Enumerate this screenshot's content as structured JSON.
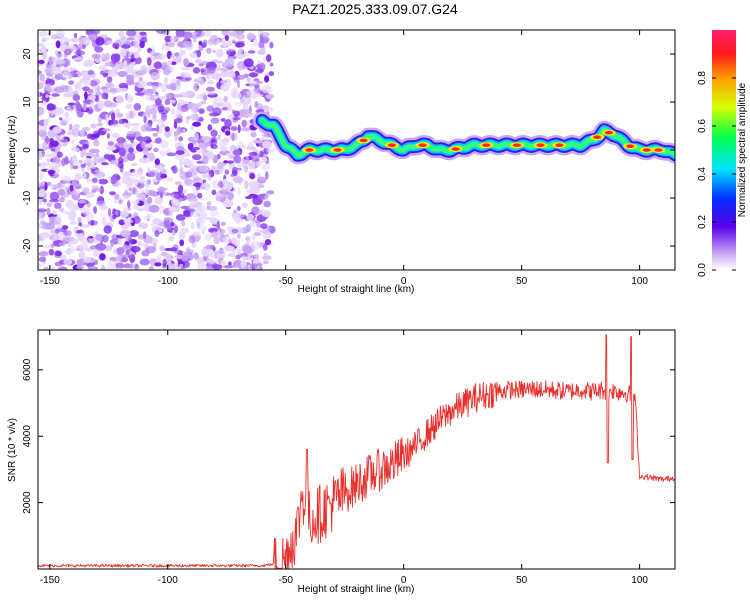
{
  "title": "PAZ1.2025.333.09.07.G24",
  "colors": {
    "snr_line": "#e8302c",
    "noise": "#8a2be2",
    "frame": "#000000"
  },
  "chart_data": [
    {
      "type": "heatmap",
      "name": "spectrogram",
      "xlabel": "Height of straight line (km)",
      "ylabel": "Frequency (Hz)",
      "xlim": [
        -155,
        115
      ],
      "ylim": [
        -25,
        25
      ],
      "xticks": [
        -150,
        -100,
        -50,
        0,
        50,
        100
      ],
      "yticks": [
        -20,
        -10,
        0,
        10,
        20
      ],
      "colorbar": {
        "label": "Normalized spectral amplitude",
        "range": [
          0,
          1
        ],
        "ticks": [
          "0.0",
          "0.2",
          "0.4",
          "0.6",
          "0.8"
        ],
        "tick_values": [
          0,
          0.2,
          0.4,
          0.6,
          0.8
        ]
      },
      "ridge": {
        "x": [
          -60,
          -55,
          -50,
          -45,
          -40,
          -35,
          -30,
          -25,
          -20,
          -17,
          -15,
          -10,
          -5,
          0,
          5,
          10,
          15,
          20,
          30,
          40,
          50,
          60,
          70,
          75,
          80,
          83,
          85,
          90,
          95,
          100,
          105,
          110,
          115
        ],
        "freq": [
          6,
          5,
          1,
          -1,
          0,
          0,
          0,
          0,
          1,
          2,
          3,
          2,
          1,
          0,
          1,
          1,
          0,
          0,
          1,
          1,
          1,
          1,
          1,
          1,
          2,
          3,
          4,
          3,
          1,
          0,
          0,
          0,
          -1
        ]
      }
    },
    {
      "type": "line",
      "name": "snr",
      "xlabel": "Height of straight line (km)",
      "ylabel": "SNR (10 * v/v)",
      "xlim": [
        -155,
        115
      ],
      "ylim": [
        0,
        7200
      ],
      "xticks": [
        -150,
        -100,
        -50,
        0,
        50,
        100
      ],
      "yticks": [
        2000,
        4000,
        6000
      ],
      "series": [
        {
          "name": "SNR",
          "x": [
            -155,
            -60,
            -55,
            -50,
            -48,
            -45,
            -43,
            -40,
            -35,
            -30,
            -25,
            -20,
            -15,
            -10,
            -5,
            0,
            5,
            10,
            15,
            20,
            25,
            30,
            35,
            40,
            45,
            50,
            55,
            60,
            65,
            70,
            75,
            80,
            85,
            86,
            88,
            90,
            95,
            96,
            98,
            99,
            100,
            105,
            110,
            115
          ],
          "y": [
            100,
            100,
            150,
            300,
            700,
            1200,
            2300,
            1500,
            1700,
            2000,
            2300,
            2550,
            2800,
            3000,
            3150,
            3400,
            3700,
            4100,
            4450,
            4750,
            4950,
            5150,
            5250,
            5350,
            5400,
            5400,
            5420,
            5400,
            5380,
            5350,
            5400,
            5350,
            5400,
            5300,
            5400,
            5350,
            5300,
            5250,
            5200,
            4000,
            2800,
            2750,
            2700,
            2750
          ]
        }
      ]
    }
  ]
}
